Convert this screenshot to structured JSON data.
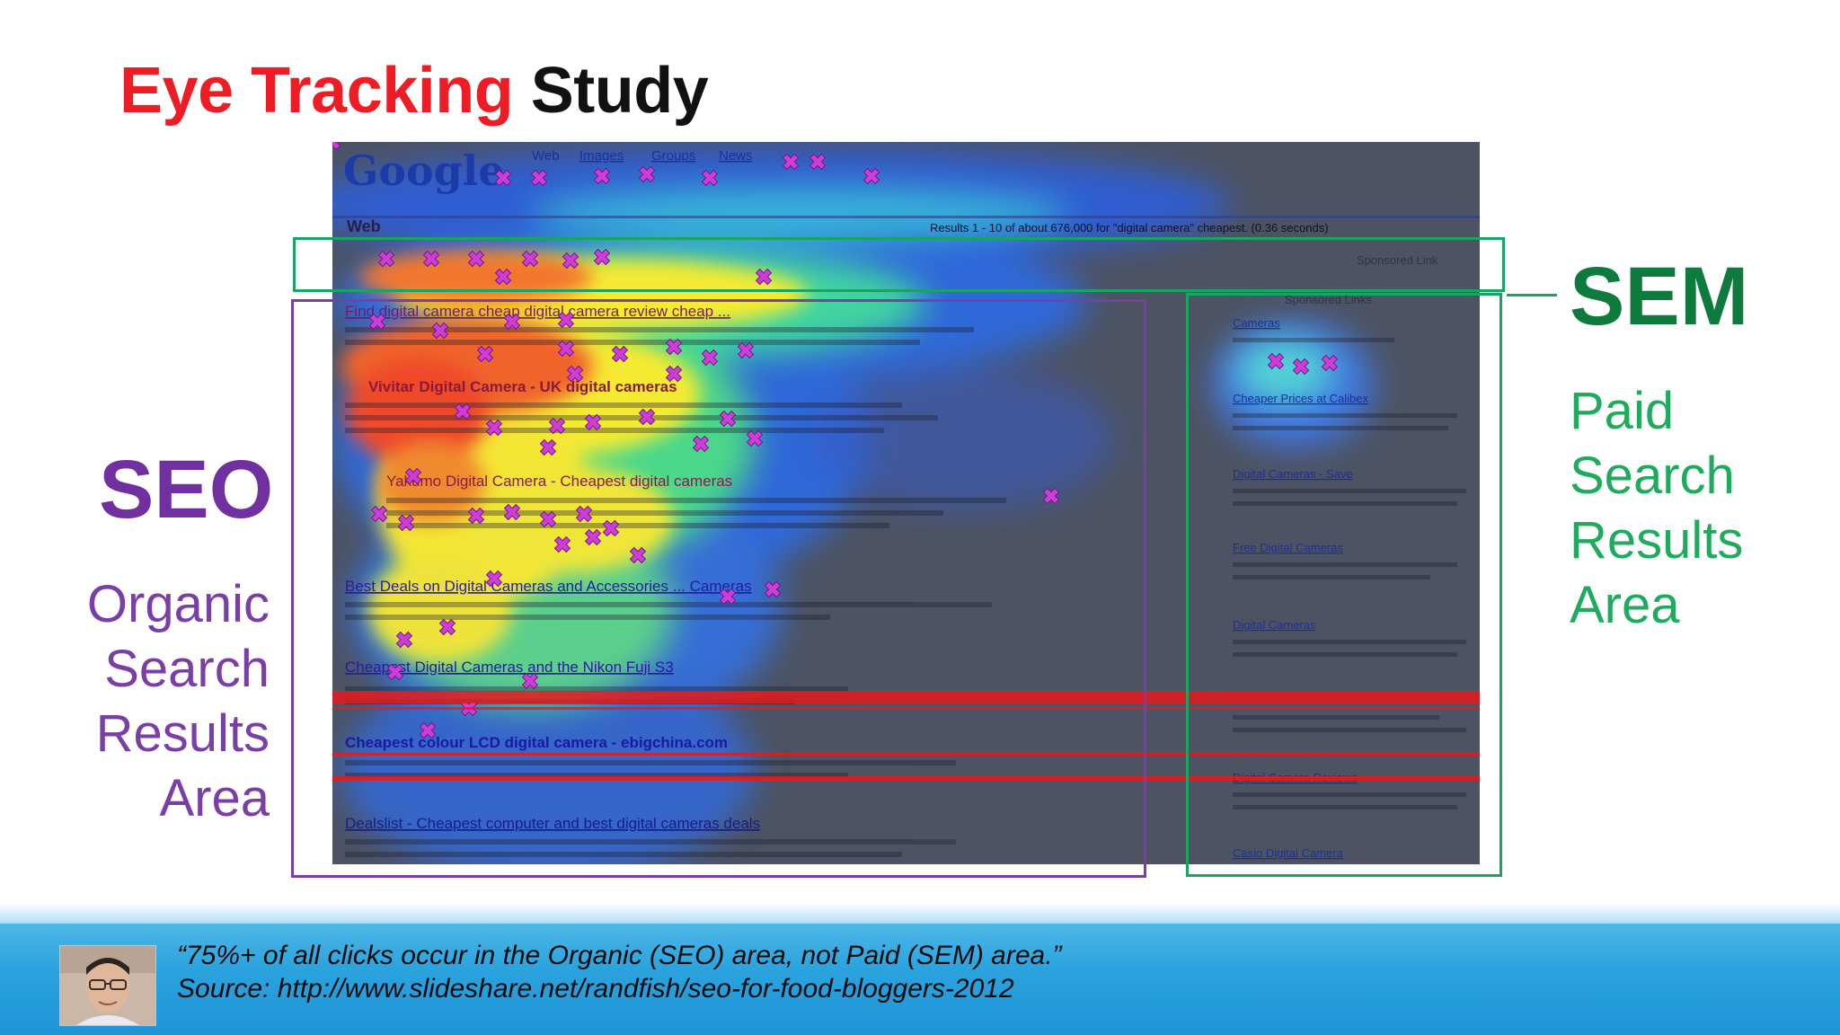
{
  "title": {
    "part1": "Eye Tracking",
    "part2": "Study",
    "part1_color": "#ee1c24",
    "part2_color": "#111111"
  },
  "seo": {
    "heading": "SEO",
    "subtitle_lines": [
      "Organic",
      "Search",
      "Results",
      "Area"
    ],
    "color": "#7030a0"
  },
  "sem": {
    "heading": "SEM",
    "subtitle_lines": [
      "Paid",
      "Search",
      "Results",
      "Area"
    ],
    "color": "#0e7a3e",
    "subtitle_color": "#1faa5d"
  },
  "heatmap_screenshot": {
    "nav_links": [
      "Web",
      "Images",
      "Groups",
      "News"
    ],
    "logo": "Google",
    "section": "Web",
    "results_summary": "Results 1 - 10 of about 676,000 for \"digital camera\" cheapest. (0.36 seconds)",
    "sponsored_link": "Sponsored Link",
    "sponsored_links": "Sponsored Links",
    "organic_results": [
      "Find digital camera cheap digital camera review cheap ...",
      "Vivitar Digital Camera - UK digital cameras",
      "Yakumo Digital Camera - Cheapest digital cameras",
      "Best Deals on Digital Cameras and Accessories ... Cameras",
      "Cheapest Digital Cameras and the Nikon Fuji S3",
      "Cheapest colour LCD digital camera - ebigchina.com",
      "Dealslist - Cheapest computer and best digital cameras deals"
    ],
    "paid_results": [
      "Cameras",
      "Cheaper Prices at Calibex",
      "Digital Cameras - Save",
      "Free Digital Cameras",
      "Digital Cameras",
      "Digital Camera Reviews",
      "Casio Digital Camera"
    ]
  },
  "footer": {
    "quote": "“75%+ of all clicks occur in the Organic (SEO) area, not Paid (SEM) area.”",
    "source": "Source: http://www.slideshare.net/randfish/seo-for-food-bloggers-2012"
  }
}
